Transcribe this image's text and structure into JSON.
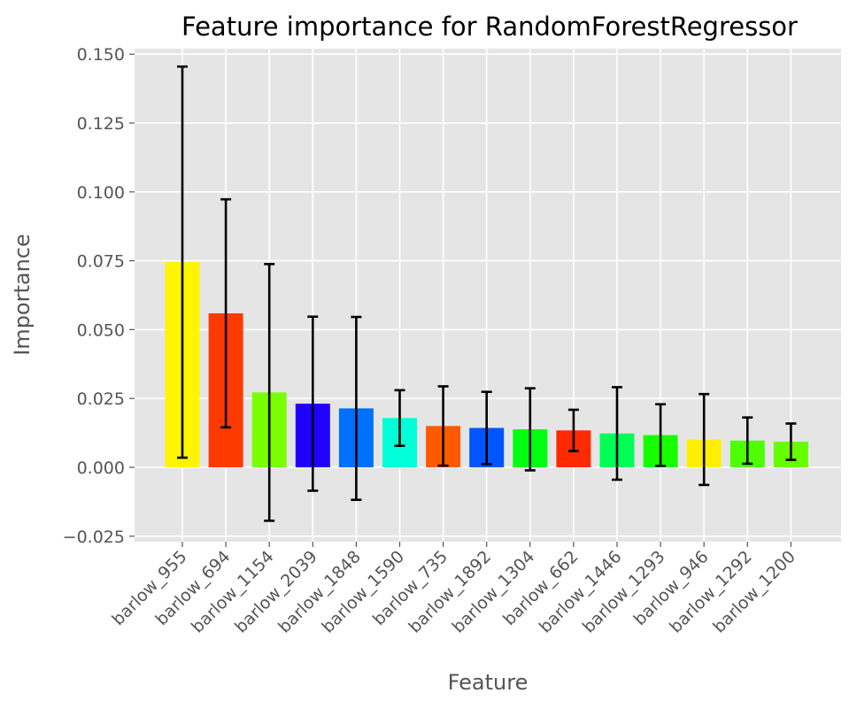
{
  "chart_data": {
    "type": "bar",
    "title": "Feature importance for RandomForestRegressor",
    "xlabel": "Feature",
    "ylabel": "Importance",
    "categories": [
      "barlow_955",
      "barlow_694",
      "barlow_1154",
      "barlow_2039",
      "barlow_1848",
      "barlow_1590",
      "barlow_735",
      "barlow_1892",
      "barlow_1304",
      "barlow_662",
      "barlow_1446",
      "barlow_1293",
      "barlow_946",
      "barlow_1292",
      "barlow_1200"
    ],
    "values": [
      0.0745,
      0.0559,
      0.0272,
      0.0231,
      0.0214,
      0.0179,
      0.015,
      0.0143,
      0.0138,
      0.0134,
      0.0123,
      0.0117,
      0.0101,
      0.0097,
      0.0093
    ],
    "error": [
      0.071,
      0.0414,
      0.0466,
      0.0316,
      0.0332,
      0.0101,
      0.0144,
      0.0131,
      0.0149,
      0.0075,
      0.0168,
      0.0112,
      0.0165,
      0.0084,
      0.0066
    ],
    "colors": [
      "#fff500",
      "#ff3a00",
      "#7aff00",
      "#2000ff",
      "#0070ff",
      "#00ffd8",
      "#ff5a00",
      "#0055ff",
      "#00ff10",
      "#ff2a00",
      "#00ff55",
      "#15ff00",
      "#fff000",
      "#4dff00",
      "#65ff00"
    ],
    "ylim": [
      -0.027,
      0.152
    ],
    "yticks": [
      -0.025,
      0.0,
      0.025,
      0.05,
      0.075,
      0.1,
      0.125,
      0.15
    ],
    "ytick_labels": [
      "−0.025",
      "0.000",
      "0.025",
      "0.050",
      "0.075",
      "0.100",
      "0.125",
      "0.150"
    ],
    "grid": true,
    "style": "ggplot",
    "background_color": "#e5e5e5",
    "grid_color": "#ffffff",
    "errorbar_color": "#000000"
  }
}
